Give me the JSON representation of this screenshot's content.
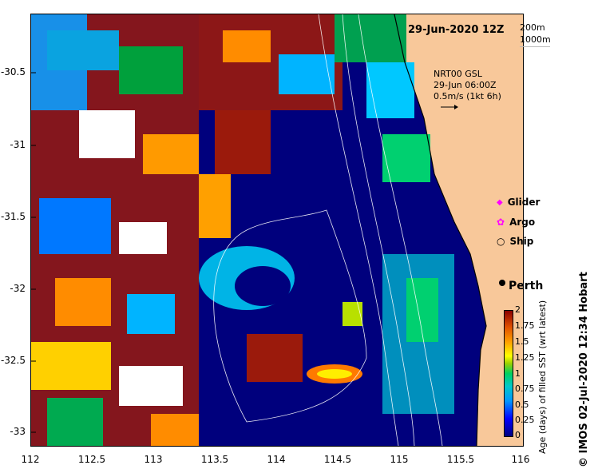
{
  "title": "29-Jun-2020 12Z",
  "depth_contours": {
    "a": "200m",
    "b": "1000m"
  },
  "vector_info": {
    "line1": "NRT00 GSL",
    "line2": "29-Jun 06:00Z",
    "line3": "0.5m/s (1kt 6h)"
  },
  "legend": {
    "glider": "Glider",
    "argo": "Argo",
    "ship": "Ship"
  },
  "city": "Perth",
  "x_axis": {
    "ticks": [
      "112",
      "112.5",
      "113",
      "113.5",
      "114",
      "114.5",
      "115",
      "115.5",
      "116"
    ]
  },
  "y_axis": {
    "ticks": [
      "-30.5",
      "-31",
      "-31.5",
      "-32",
      "-32.5",
      "-33"
    ]
  },
  "colorbar": {
    "title": "Age (days) of filled SST (wrt latest)",
    "ticks": [
      "2",
      "1.75",
      "1.5",
      "1.25",
      "1",
      "0.75",
      "0.5",
      "0.25",
      "0"
    ]
  },
  "credit": "© IMOS 02-Jul-2020 12:34 Hobart",
  "colors": {
    "land": "#f8c89a",
    "deep_blue": "#000080",
    "dark_red": "#8b0000"
  }
}
